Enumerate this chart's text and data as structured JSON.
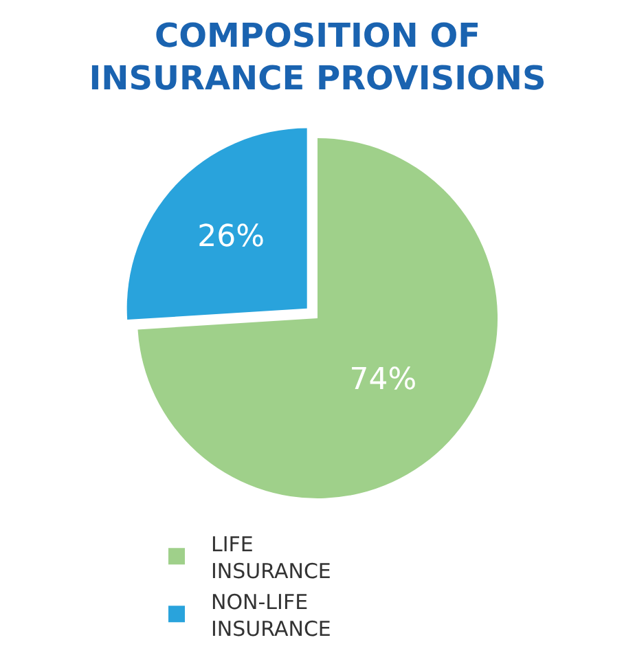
{
  "chart_data": {
    "type": "pie",
    "title": "COMPOSITION OF\nINSURANCE PROVISIONS",
    "categories": [
      "LIFE INSURANCE",
      "NON-LIFE INSURANCE"
    ],
    "values": [
      74,
      26
    ],
    "value_labels": [
      "74%",
      "26%"
    ],
    "colors": [
      "#9fd08a",
      "#29a3dc"
    ],
    "legend": "bottom"
  }
}
